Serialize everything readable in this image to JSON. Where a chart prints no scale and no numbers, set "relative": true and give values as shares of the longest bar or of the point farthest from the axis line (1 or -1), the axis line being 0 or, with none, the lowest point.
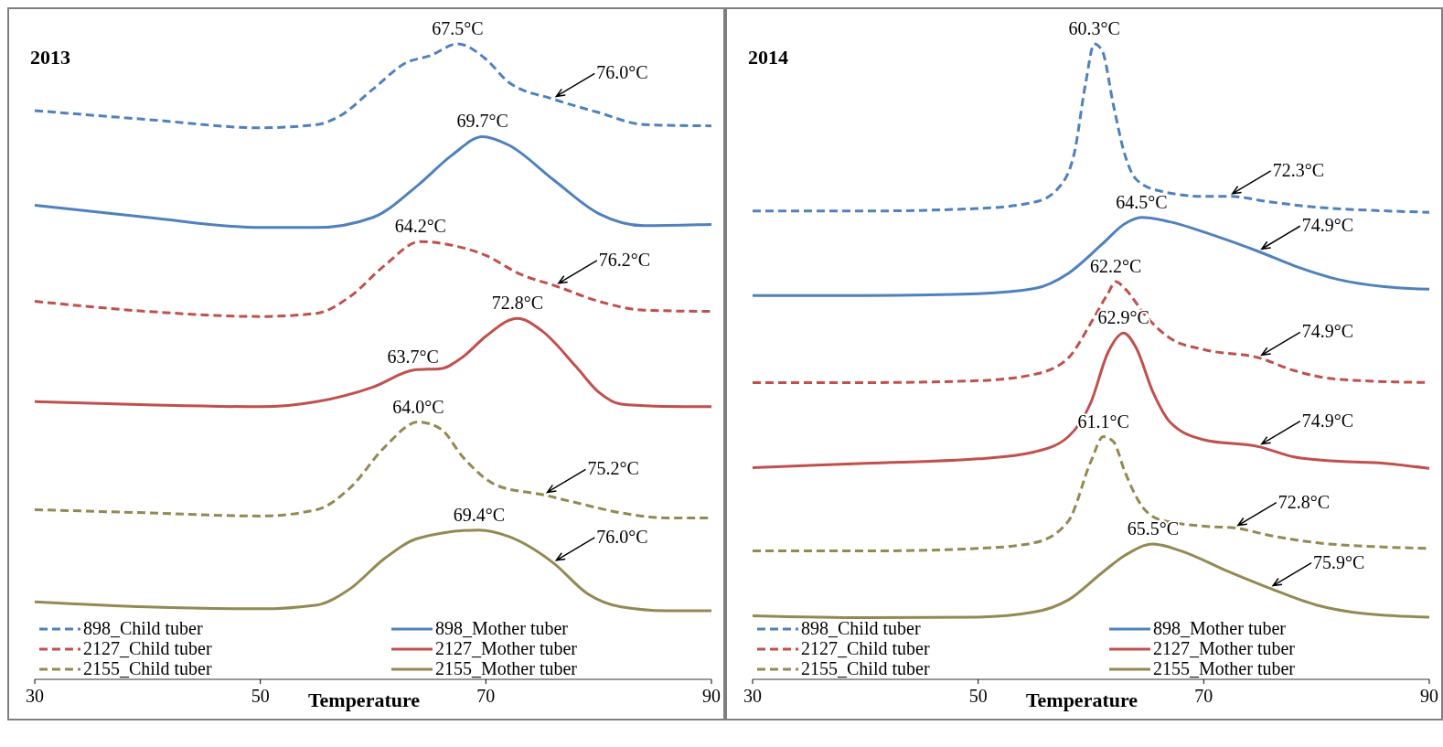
{
  "chart_data": [
    {
      "type": "line",
      "title": "2013",
      "xlabel": "Temperature",
      "xlim": [
        30,
        90
      ],
      "xticks": [
        30,
        50,
        70,
        90
      ],
      "relative": true,
      "legend": "bottom",
      "series": [
        {
          "name": "898_Child tuber",
          "color": "#4f81bd",
          "line_style": "dashed",
          "x": [
            30,
            40,
            50,
            55,
            57,
            60,
            63,
            65,
            67.5,
            70,
            72,
            76,
            80,
            84,
            90
          ],
          "values": [
            0.895,
            0.881,
            0.868,
            0.873,
            0.886,
            0.929,
            0.971,
            0.981,
            1,
            0.976,
            0.94,
            0.913,
            0.892,
            0.873,
            0.871
          ]
        },
        {
          "name": "898_Mother tuber",
          "color": "#4f81bd",
          "line_style": "solid",
          "x": [
            30,
            40,
            50,
            55,
            60,
            64,
            67,
            69.7,
            72,
            76,
            80,
            84,
            90
          ],
          "values": [
            0.746,
            0.727,
            0.711,
            0.711,
            0.727,
            0.778,
            0.825,
            0.854,
            0.841,
            0.786,
            0.733,
            0.714,
            0.716
          ]
        },
        {
          "name": "2127_Child tuber",
          "color": "#c0504d",
          "line_style": "dashed",
          "x": [
            30,
            40,
            50,
            55,
            58,
            61,
            64.2,
            67,
            70,
            73,
            76.2,
            80,
            84,
            90
          ],
          "values": [
            0.595,
            0.579,
            0.571,
            0.576,
            0.603,
            0.651,
            0.689,
            0.683,
            0.667,
            0.638,
            0.619,
            0.595,
            0.581,
            0.579
          ]
        },
        {
          "name": "2127_Mother tuber",
          "color": "#c0504d",
          "line_style": "solid",
          "x": [
            30,
            40,
            50,
            55,
            60,
            63.7,
            66,
            68,
            70,
            72.8,
            75,
            78,
            80,
            82,
            85,
            90
          ],
          "values": [
            0.437,
            0.432,
            0.429,
            0.437,
            0.46,
            0.487,
            0.489,
            0.508,
            0.54,
            0.568,
            0.548,
            0.492,
            0.452,
            0.433,
            0.43,
            0.429
          ]
        },
        {
          "name": "2155_Child tuber",
          "color": "#938953",
          "line_style": "dashed",
          "x": [
            30,
            40,
            50,
            55,
            58,
            61,
            64,
            66,
            68,
            71,
            75.2,
            78,
            82,
            86,
            90
          ],
          "values": [
            0.267,
            0.262,
            0.257,
            0.267,
            0.302,
            0.365,
            0.405,
            0.394,
            0.349,
            0.305,
            0.29,
            0.278,
            0.262,
            0.254,
            0.254
          ]
        },
        {
          "name": "2155_Mother tuber",
          "color": "#938953",
          "line_style": "solid",
          "x": [
            30,
            40,
            50,
            55,
            58,
            61,
            64,
            69.4,
            72,
            76,
            79,
            82,
            86,
            90
          ],
          "values": [
            0.122,
            0.114,
            0.111,
            0.117,
            0.143,
            0.19,
            0.222,
            0.235,
            0.225,
            0.183,
            0.135,
            0.114,
            0.108,
            0.108
          ]
        }
      ],
      "annotations": [
        {
          "text": "67.5°C",
          "x": 67.5,
          "y": 1
        },
        {
          "text": "76.0°C",
          "x": 76,
          "y": 0.913
        },
        {
          "text": "69.7°C",
          "x": 69.7,
          "y": 0.854
        },
        {
          "text": "64.2°C",
          "x": 64.2,
          "y": 0.689
        },
        {
          "text": "76.2°C",
          "x": 76.2,
          "y": 0.619
        },
        {
          "text": "72.8°C",
          "x": 72.8,
          "y": 0.568
        },
        {
          "text": "63.7°C",
          "x": 63.7,
          "y": 0.487
        },
        {
          "text": "64.0°C",
          "x": 64,
          "y": 0.405
        },
        {
          "text": "75.2°C",
          "x": 75.2,
          "y": 0.29
        },
        {
          "text": "69.4°C",
          "x": 69.4,
          "y": 0.235
        },
        {
          "text": "76.0°C",
          "x": 76,
          "y": 0.183
        }
      ]
    },
    {
      "type": "line",
      "title": "2014",
      "xlabel": "Temperature",
      "xlim": [
        30,
        90
      ],
      "xticks": [
        30,
        50,
        70,
        90
      ],
      "relative": true,
      "legend": "bottom",
      "series": [
        {
          "name": "898_Child tuber",
          "color": "#4f81bd",
          "line_style": "dashed",
          "x": [
            30,
            40,
            50,
            55,
            57,
            58.5,
            59.5,
            60.3,
            61,
            62,
            63,
            64,
            66,
            70,
            72.3,
            76,
            80,
            85,
            90
          ],
          "values": [
            0.737,
            0.737,
            0.741,
            0.751,
            0.771,
            0.826,
            0.935,
            1,
            0.989,
            0.903,
            0.826,
            0.787,
            0.769,
            0.76,
            0.76,
            0.751,
            0.743,
            0.738,
            0.735
          ]
        },
        {
          "name": "898_Mother tuber",
          "color": "#4f81bd",
          "line_style": "solid",
          "x": [
            30,
            40,
            50,
            55,
            58,
            61,
            63,
            64.5,
            67,
            71,
            74.9,
            78,
            82,
            86,
            90
          ],
          "values": [
            0.604,
            0.604,
            0.607,
            0.615,
            0.639,
            0.685,
            0.717,
            0.727,
            0.72,
            0.698,
            0.673,
            0.651,
            0.629,
            0.618,
            0.614
          ]
        },
        {
          "name": "2127_Child tuber",
          "color": "#c0504d",
          "line_style": "dashed",
          "x": [
            30,
            40,
            50,
            55,
            58,
            60,
            61.5,
            62.2,
            63,
            65,
            67,
            70,
            74.9,
            78,
            82,
            90
          ],
          "values": [
            0.467,
            0.467,
            0.47,
            0.48,
            0.506,
            0.561,
            0.607,
            0.626,
            0.615,
            0.569,
            0.537,
            0.519,
            0.506,
            0.486,
            0.472,
            0.467
          ]
        },
        {
          "name": "2127_Mother tuber",
          "color": "#c0504d",
          "line_style": "solid",
          "x": [
            30,
            40,
            50,
            55,
            58,
            60,
            61.5,
            62.9,
            64,
            65.5,
            67,
            70,
            74.9,
            78,
            82,
            86,
            90
          ],
          "values": [
            0.333,
            0.34,
            0.347,
            0.358,
            0.382,
            0.436,
            0.514,
            0.545,
            0.522,
            0.452,
            0.405,
            0.377,
            0.366,
            0.35,
            0.343,
            0.34,
            0.332
          ]
        },
        {
          "name": "2155_Child tuber",
          "color": "#938953",
          "line_style": "dashed",
          "x": [
            30,
            40,
            50,
            55,
            58,
            60,
            61.1,
            62,
            63,
            64.5,
            66,
            70,
            72.8,
            76,
            80,
            85,
            90
          ],
          "values": [
            0.202,
            0.202,
            0.206,
            0.215,
            0.249,
            0.343,
            0.382,
            0.374,
            0.327,
            0.273,
            0.252,
            0.241,
            0.238,
            0.226,
            0.215,
            0.209,
            0.206
          ]
        },
        {
          "name": "2155_Mother tuber",
          "color": "#938953",
          "line_style": "solid",
          "x": [
            30,
            40,
            50,
            55,
            58,
            61,
            63,
            65.5,
            68,
            72,
            75.9,
            80,
            84,
            90
          ],
          "values": [
            0.1,
            0.097,
            0.098,
            0.106,
            0.125,
            0.168,
            0.195,
            0.213,
            0.202,
            0.171,
            0.143,
            0.117,
            0.104,
            0.098
          ]
        }
      ],
      "annotations": [
        {
          "text": "60.3°C",
          "x": 60.3,
          "y": 1
        },
        {
          "text": "72.3°C",
          "x": 72.3,
          "y": 0.76
        },
        {
          "text": "64.5°C",
          "x": 64.5,
          "y": 0.727
        },
        {
          "text": "74.9°C",
          "x": 74.9,
          "y": 0.673
        },
        {
          "text": "62.2°C",
          "x": 62.2,
          "y": 0.626
        },
        {
          "text": "74.9°C",
          "x": 74.9,
          "y": 0.506
        },
        {
          "text": "62.9°C",
          "x": 62.9,
          "y": 0.545
        },
        {
          "text": "74.9°C",
          "x": 74.9,
          "y": 0.366
        },
        {
          "text": "61.1°C",
          "x": 61.1,
          "y": 0.382
        },
        {
          "text": "72.8°C",
          "x": 72.8,
          "y": 0.238
        },
        {
          "text": "65.5°C",
          "x": 65.5,
          "y": 0.213
        },
        {
          "text": "75.9°C",
          "x": 75.9,
          "y": 0.143
        }
      ]
    }
  ]
}
